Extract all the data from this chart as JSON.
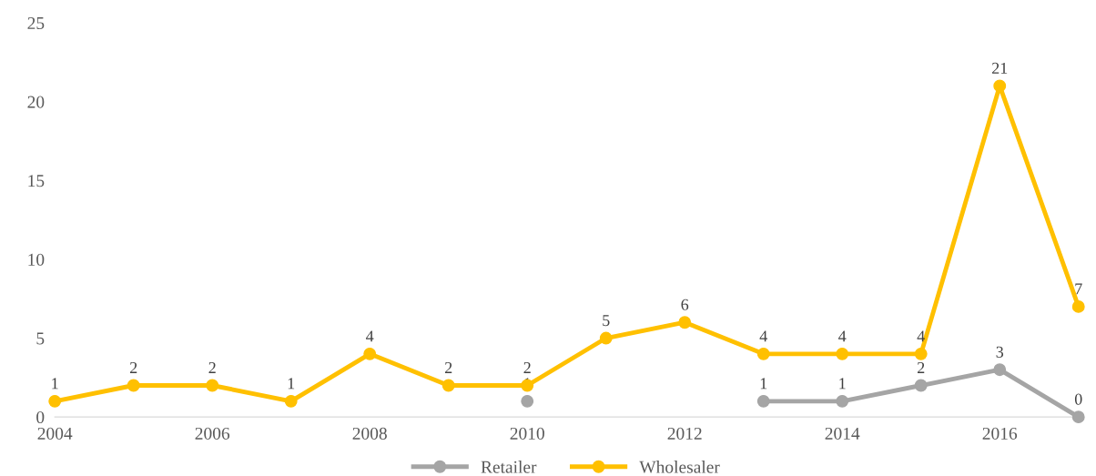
{
  "chart_data": {
    "type": "line",
    "x": [
      2004,
      2005,
      2006,
      2007,
      2008,
      2009,
      2010,
      2011,
      2012,
      2013,
      2014,
      2015,
      2016,
      2017
    ],
    "series": [
      {
        "name": "Retailer",
        "color": "#a5a5a5",
        "values": [
          null,
          null,
          null,
          null,
          null,
          null,
          1,
          null,
          null,
          1,
          1,
          2,
          3,
          0
        ]
      },
      {
        "name": "Wholesaler",
        "color": "#ffc000",
        "values": [
          1,
          2,
          2,
          1,
          4,
          2,
          2,
          5,
          6,
          4,
          4,
          4,
          21,
          7
        ]
      }
    ],
    "xlim": [
      2004,
      2017
    ],
    "xticks": [
      2004,
      2006,
      2008,
      2010,
      2012,
      2014,
      2016
    ],
    "ylim": [
      0,
      25
    ],
    "yticks": [
      0,
      5,
      10,
      15,
      20,
      25
    ],
    "data_labels": true,
    "marker": "circle",
    "line_style": "solid",
    "grid": false,
    "legend": "bottom"
  }
}
